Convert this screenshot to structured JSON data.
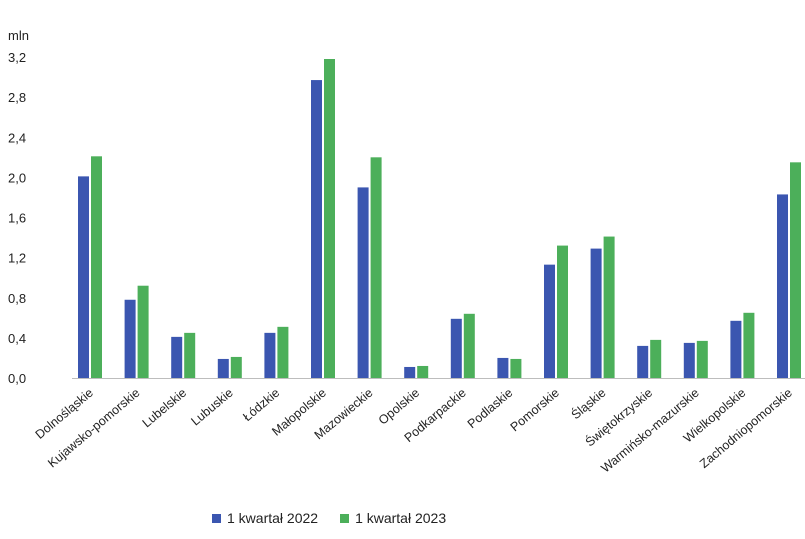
{
  "chart_data": {
    "type": "bar",
    "ylabel": "mln",
    "ylim": [
      0,
      3.2
    ],
    "yticks": [
      "0,0",
      "0,4",
      "0,8",
      "1,2",
      "1,6",
      "2,0",
      "2,4",
      "2,8",
      "3,2"
    ],
    "grid": false,
    "legend_position": "bottom",
    "categories": [
      "Dolnośląskie",
      "Kujawsko-pomorskie",
      "Lubelskie",
      "Lubuskie",
      "Łódzkie",
      "Małopolskie",
      "Mazowieckie",
      "Opolskie",
      "Podkarpackie",
      "Podlaskie",
      "Pomorskie",
      "Śląskie",
      "Świętokrzyskie",
      "Warmińsko-mazurskie",
      "Wielkopolskie",
      "Zachodniopomorskie"
    ],
    "series": [
      {
        "name": "1 kwartał 2022",
        "color": "#3b56b0",
        "values": [
          2.01,
          0.78,
          0.41,
          0.19,
          0.45,
          2.97,
          1.9,
          0.11,
          0.59,
          0.2,
          1.13,
          1.29,
          0.32,
          0.35,
          0.57,
          1.83
        ]
      },
      {
        "name": "1 kwartał 2023",
        "color": "#4caf5a",
        "values": [
          2.21,
          0.92,
          0.45,
          0.21,
          0.51,
          3.18,
          2.2,
          0.12,
          0.64,
          0.19,
          1.32,
          1.41,
          0.38,
          0.37,
          0.65,
          2.15
        ]
      }
    ]
  }
}
